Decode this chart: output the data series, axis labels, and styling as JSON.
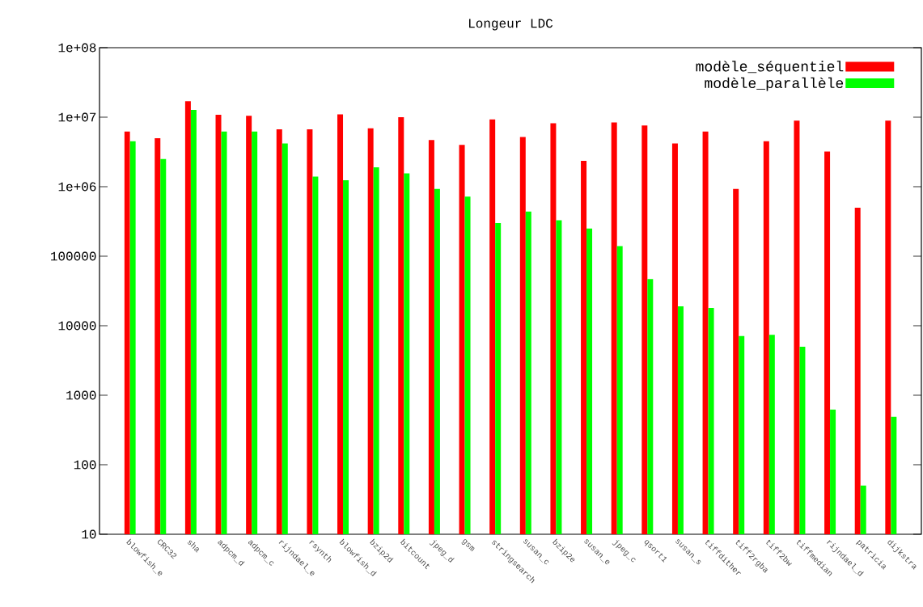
{
  "chart_data": {
    "type": "bar",
    "title": "Longeur LDC",
    "categories": [
      "blowfish_e",
      "CRC32",
      "sha",
      "adpcm_d",
      "adpcm_c",
      "rijndael_e",
      "rsynth",
      "blowfish_d",
      "bzip2d",
      "bitcount",
      "jpeg_d",
      "gsm",
      "stringsearch",
      "susan_c",
      "bzip2e",
      "susan_e",
      "jpeg_c",
      "qsort1",
      "susan_s",
      "tiffdither",
      "tiff2rgba",
      "tiff2bw",
      "tiffmedian",
      "rijndael_d",
      "patricia",
      "dijkstra"
    ],
    "series": [
      {
        "name": "modèle_séquentiel",
        "color": "#ff0000",
        "values": [
          6200000,
          5000000,
          17000000,
          10800000,
          10500000,
          6700000,
          6700000,
          11000000,
          6900000,
          10000000,
          4700000,
          4000000,
          9300000,
          5200000,
          8200000,
          2350000,
          8400000,
          7600000,
          4200000,
          6200000,
          930000,
          4500000,
          8900000,
          3200000,
          500000,
          8900000
        ]
      },
      {
        "name": "modèle_parallèle",
        "color": "#00ff00",
        "values": [
          4500000,
          2500000,
          12700000,
          6200000,
          6200000,
          4200000,
          1400000,
          1240000,
          1900000,
          1550000,
          930000,
          720000,
          300000,
          440000,
          330000,
          250000,
          140000,
          47000,
          19000,
          18000,
          7100,
          7400,
          5000,
          620,
          50,
          490
        ]
      }
    ],
    "log": "y",
    "ylim": [
      10,
      100000000
    ],
    "yticks": [
      10,
      100,
      1000,
      10000,
      100000,
      {
        "value": 1000000,
        "label": "1e+06"
      },
      {
        "value": 10000000,
        "label": "1e+07"
      },
      {
        "value": 100000000,
        "label": "1e+08"
      }
    ],
    "legend": "top right",
    "grid": false
  }
}
